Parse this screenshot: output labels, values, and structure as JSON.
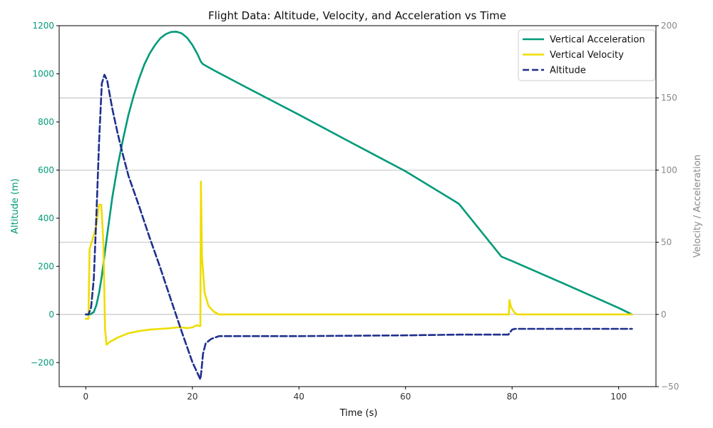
{
  "chart_data": {
    "type": "line",
    "title": "Flight Data: Altitude, Velocity, and Acceleration vs Time",
    "xlabel": "Time (s)",
    "ylabel_left": "Altitude (m)",
    "ylabel_right": "Velocity / Acceleration",
    "xlim": [
      -5,
      107
    ],
    "ylim_left": [
      -300,
      1200
    ],
    "ylim_right": [
      -50,
      200
    ],
    "x_ticks": [
      0,
      20,
      40,
      60,
      80,
      100
    ],
    "y_ticks_left": [
      -200,
      0,
      200,
      400,
      600,
      800,
      1000,
      1200
    ],
    "y_ticks_right": [
      -50,
      0,
      50,
      100,
      150,
      200
    ],
    "grid": "horizontal-right-axis",
    "legend_position": "top-right",
    "colors": {
      "left_axis": "#009a7a",
      "right_axis": "#888888",
      "grid": "#b0b0b0"
    },
    "series": [
      {
        "name": "Vertical Acceleration",
        "axis": "left",
        "color": "#009a7a",
        "style": "solid",
        "points": [
          [
            0,
            0
          ],
          [
            0.8,
            0
          ],
          [
            1.5,
            10
          ],
          [
            2,
            40
          ],
          [
            2.5,
            90
          ],
          [
            3,
            160
          ],
          [
            4,
            330
          ],
          [
            5,
            490
          ],
          [
            6,
            620
          ],
          [
            7,
            730
          ],
          [
            8,
            830
          ],
          [
            9,
            910
          ],
          [
            10,
            980
          ],
          [
            11,
            1040
          ],
          [
            12,
            1085
          ],
          [
            13,
            1120
          ],
          [
            14,
            1148
          ],
          [
            15,
            1165
          ],
          [
            16,
            1174
          ],
          [
            17,
            1175
          ],
          [
            18,
            1168
          ],
          [
            19,
            1150
          ],
          [
            20,
            1120
          ],
          [
            21,
            1080
          ],
          [
            21.6,
            1050
          ],
          [
            22,
            1040
          ],
          [
            24,
            1015
          ],
          [
            30,
            945
          ],
          [
            40,
            830
          ],
          [
            50,
            712
          ],
          [
            60,
            595
          ],
          [
            70,
            460
          ],
          [
            78,
            240
          ],
          [
            80,
            222
          ],
          [
            90,
            125
          ],
          [
            100,
            27
          ],
          [
            102.5,
            0
          ]
        ]
      },
      {
        "name": "Vertical Velocity",
        "axis": "right",
        "color": "#eedd00",
        "style": "solid",
        "points": [
          [
            0,
            -3
          ],
          [
            0.5,
            -3
          ],
          [
            0.7,
            45
          ],
          [
            1.5,
            55
          ],
          [
            2,
            62
          ],
          [
            2.5,
            76
          ],
          [
            2.9,
            76
          ],
          [
            3.3,
            50
          ],
          [
            3.6,
            -10
          ],
          [
            3.9,
            -21
          ],
          [
            4.5,
            -19
          ],
          [
            6,
            -16
          ],
          [
            8,
            -13
          ],
          [
            10,
            -11.5
          ],
          [
            12,
            -10.5
          ],
          [
            14,
            -10
          ],
          [
            16,
            -9.5
          ],
          [
            17,
            -9
          ],
          [
            18,
            -9
          ],
          [
            19,
            -9.5
          ],
          [
            20,
            -9
          ],
          [
            20.8,
            -7.5
          ],
          [
            21.3,
            -8
          ],
          [
            21.5,
            -8
          ],
          [
            21.6,
            92
          ],
          [
            21.8,
            40
          ],
          [
            22.3,
            15
          ],
          [
            23,
            6
          ],
          [
            24,
            2
          ],
          [
            25,
            0
          ],
          [
            30,
            0
          ],
          [
            40,
            0
          ],
          [
            60,
            0
          ],
          [
            79.4,
            0
          ],
          [
            79.5,
            10
          ],
          [
            79.8,
            5
          ],
          [
            80.5,
            1
          ],
          [
            81,
            0
          ],
          [
            90,
            0
          ],
          [
            102.5,
            0
          ]
        ]
      },
      {
        "name": "Altitude",
        "axis": "right",
        "color": "#1f2f8c",
        "style": "dashed",
        "points": [
          [
            0,
            0
          ],
          [
            0.5,
            0
          ],
          [
            1,
            5
          ],
          [
            1.5,
            25
          ],
          [
            2,
            70
          ],
          [
            2.5,
            120
          ],
          [
            3,
            160
          ],
          [
            3.5,
            166
          ],
          [
            4,
            162
          ],
          [
            5,
            142
          ],
          [
            6,
            125
          ],
          [
            7,
            110
          ],
          [
            8,
            96
          ],
          [
            10,
            75
          ],
          [
            12,
            53
          ],
          [
            14,
            32
          ],
          [
            16,
            10
          ],
          [
            18,
            -12
          ],
          [
            20,
            -33
          ],
          [
            21,
            -41
          ],
          [
            21.5,
            -45
          ],
          [
            21.7,
            -39
          ],
          [
            22,
            -27
          ],
          [
            22.5,
            -20
          ],
          [
            23.5,
            -17
          ],
          [
            25,
            -15
          ],
          [
            30,
            -15
          ],
          [
            40,
            -15
          ],
          [
            60,
            -14.5
          ],
          [
            70,
            -14
          ],
          [
            79.3,
            -14
          ],
          [
            80,
            -10.5
          ],
          [
            80.5,
            -10
          ],
          [
            90,
            -10
          ],
          [
            102.5,
            -10
          ]
        ]
      }
    ]
  }
}
